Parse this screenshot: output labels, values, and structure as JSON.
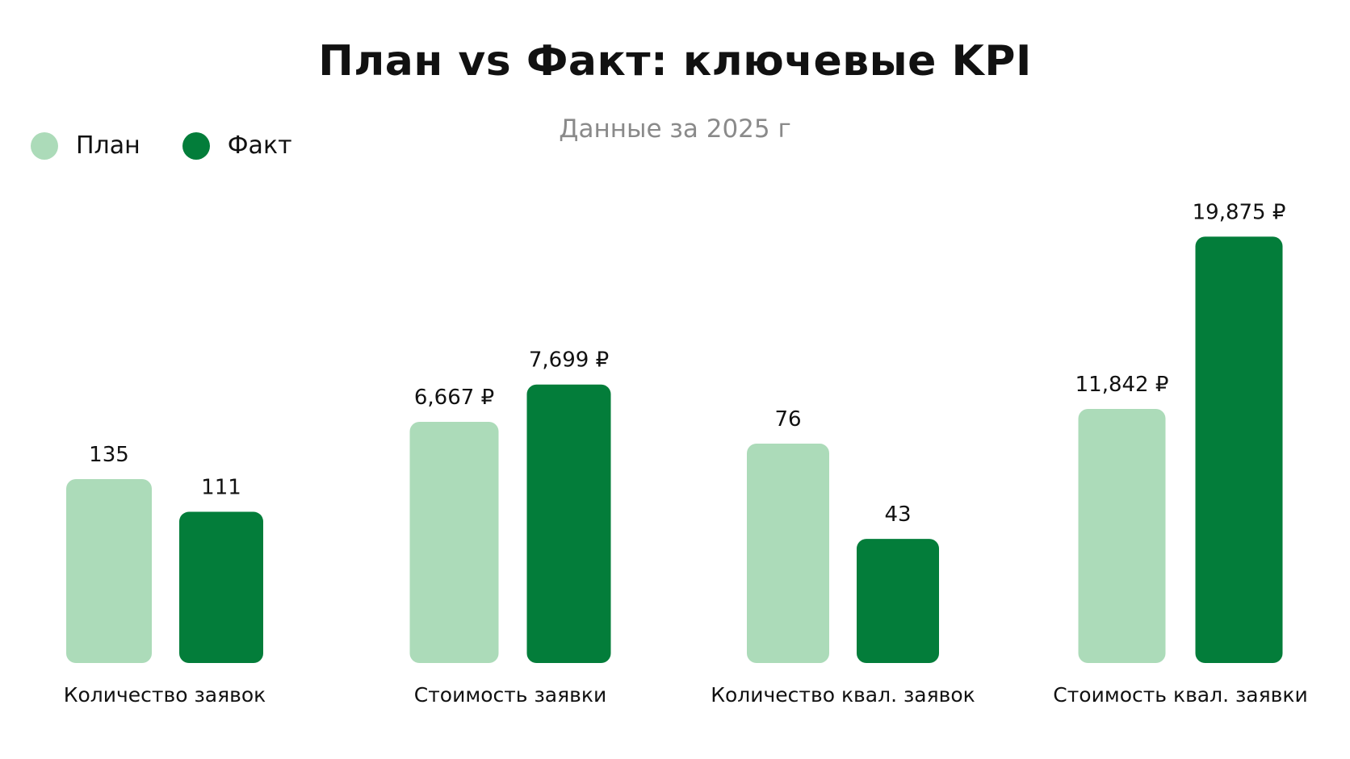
{
  "chart_data": {
    "type": "bar",
    "title": "План vs Факт: ключевые KPI",
    "subtitle": "Данные за 2025 г",
    "categories": [
      "Количество заявок",
      "Стоимость заявки",
      "Количество квал. заявок",
      "Стоимость квал. заявки"
    ],
    "series": [
      {
        "name": "План",
        "color": "#acdbb9",
        "values": [
          135,
          6667,
          76,
          11842
        ],
        "labels": [
          "135",
          "6,667 ₽",
          "76",
          "11,842 ₽"
        ]
      },
      {
        "name": "Факт",
        "color": "#037d3a",
        "values": [
          111,
          7699,
          43,
          19875
        ],
        "labels": [
          "111",
          "7,699 ₽",
          "43",
          "19,875 ₽"
        ]
      }
    ],
    "legend_position": "top-left",
    "grid": false,
    "axes_visible": false,
    "note": ""
  }
}
